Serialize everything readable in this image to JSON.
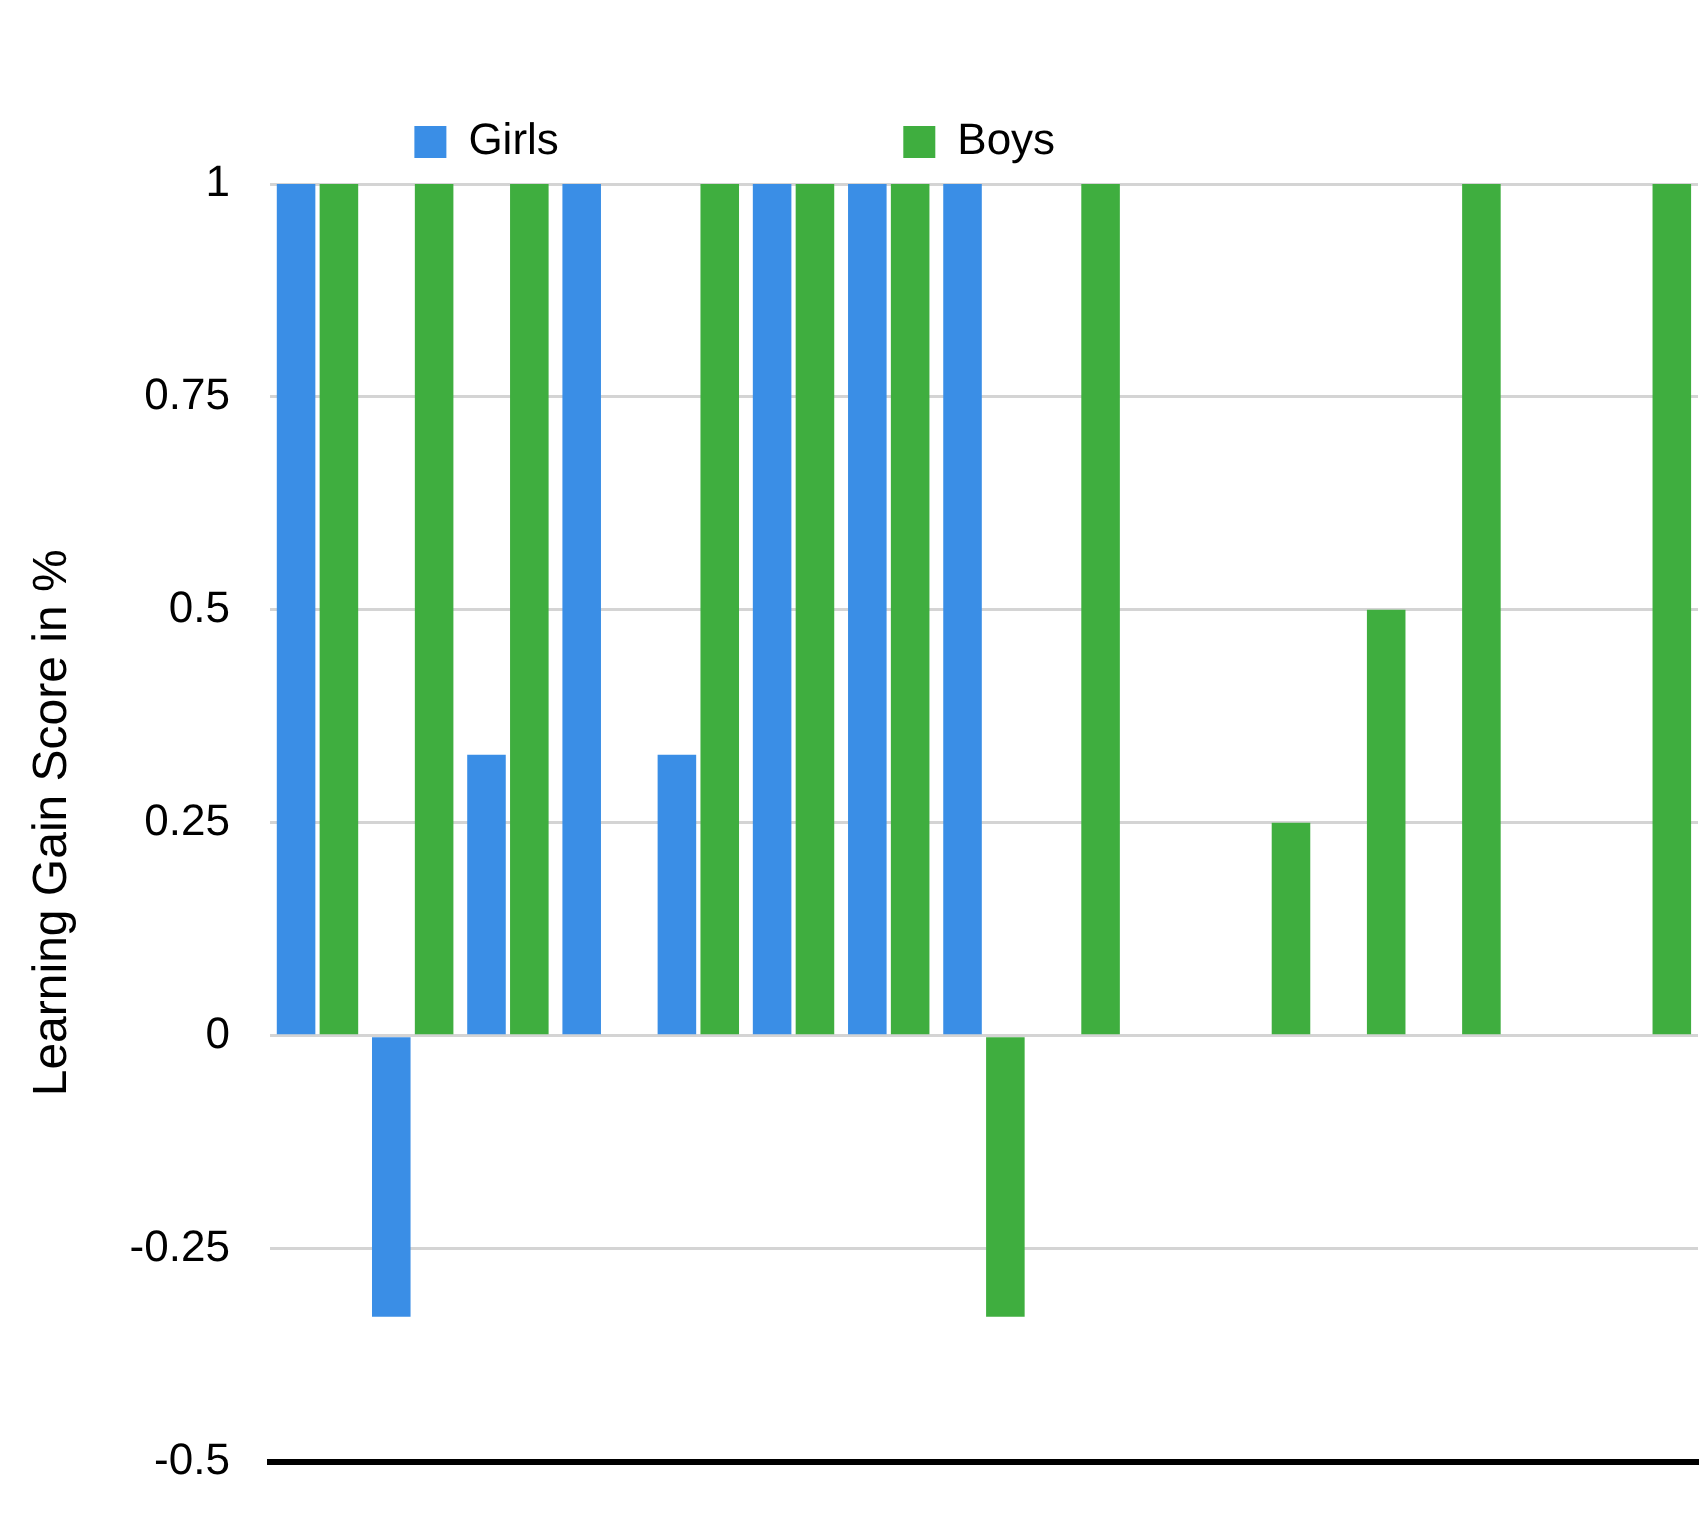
{
  "chart_data": {
    "type": "bar",
    "ylabel": "Learning Gain Score in %",
    "categories": [
      null,
      null,
      null,
      null,
      null,
      null,
      null,
      null,
      null,
      null,
      null,
      null,
      null,
      null,
      null
    ],
    "series": [
      {
        "name": "Girls",
        "color": "#3a8ee6",
        "values": [
          1,
          -0.33,
          0.33,
          1,
          0.33,
          1,
          1,
          1,
          0,
          0,
          0,
          0,
          0,
          0,
          0
        ]
      },
      {
        "name": "Boys",
        "color": "#3fae3f",
        "values": [
          1,
          1,
          1,
          0,
          1,
          1,
          1,
          -0.33,
          1,
          0,
          0.25,
          0.5,
          1,
          0,
          1
        ]
      }
    ],
    "ylim": [
      -0.5,
      1
    ],
    "yticks": [
      -0.5,
      -0.25,
      0,
      0.25,
      0.5,
      0.75,
      1
    ],
    "grid": "y",
    "legend": "top"
  }
}
